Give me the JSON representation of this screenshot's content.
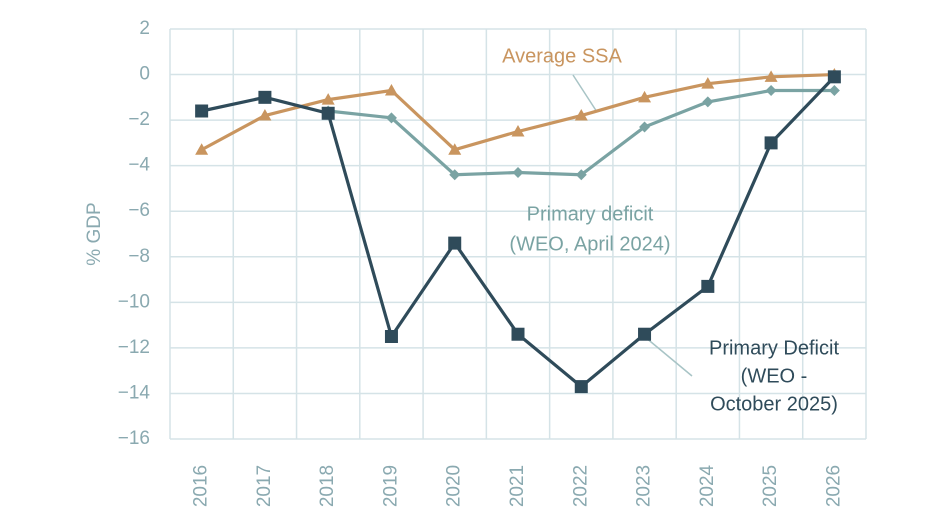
{
  "chart_data": {
    "type": "line",
    "y_label": "% GDP",
    "categories": [
      "2016",
      "2017",
      "2018",
      "2019",
      "2020",
      "2021",
      "2022",
      "2023",
      "2024",
      "2025",
      "2026"
    ],
    "series": [
      {
        "name": "Average SSA",
        "color": "#c9955f",
        "marker": "triangle",
        "values": [
          -3.3,
          -1.8,
          -1.1,
          -0.7,
          -3.3,
          -2.5,
          -1.8,
          -1.0,
          -0.4,
          -0.1,
          0.0
        ]
      },
      {
        "name": "Primary deficit (WEO, April 2024)",
        "color": "#7aa3a3",
        "marker": "diamond",
        "values": [
          null,
          null,
          -1.6,
          -1.9,
          -4.4,
          -4.3,
          -4.4,
          -2.3,
          -1.2,
          -0.7,
          -0.7
        ]
      },
      {
        "name": "Primary Deficit (WEO - October 2025)",
        "color": "#2f4b5a",
        "marker": "square",
        "values": [
          -1.6,
          -1.0,
          -1.7,
          -11.5,
          -7.4,
          -11.4,
          -13.7,
          -11.4,
          -9.3,
          -3.0,
          -0.1
        ]
      }
    ],
    "annotations": [
      {
        "lines": [
          "Average SSA"
        ],
        "color": "#c9955f"
      },
      {
        "lines": [
          "Primary deficit",
          "(WEO, April 2024)"
        ],
        "color": "#7aa3a3"
      },
      {
        "lines": [
          "Primary Deficit",
          "(WEO -",
          "October 2025)"
        ],
        "color": "#2f4b5a"
      }
    ],
    "ylim": [
      -16,
      2
    ],
    "yticks": [
      {
        "value": 2,
        "label": "2"
      },
      {
        "value": 0,
        "label": "0"
      },
      {
        "value": -2,
        "label": "−2"
      },
      {
        "value": -4,
        "label": "−4"
      },
      {
        "value": -6,
        "label": "−6"
      },
      {
        "value": -8,
        "label": "−8"
      },
      {
        "value": -10,
        "label": "−10"
      },
      {
        "value": -12,
        "label": "−12"
      },
      {
        "value": -14,
        "label": "−14"
      },
      {
        "value": -16,
        "label": "−16"
      }
    ],
    "grid": true
  }
}
